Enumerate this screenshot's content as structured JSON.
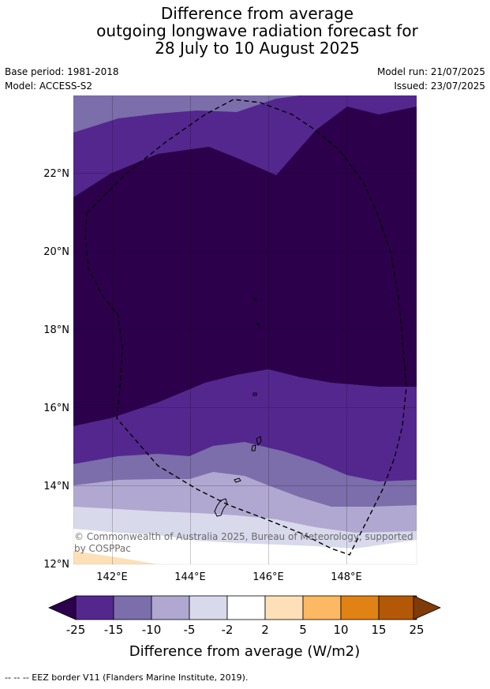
{
  "title": {
    "line1": "Difference from average",
    "line2": "outgoing longwave radiation forecast for",
    "line3": "28 July to 10 August 2025"
  },
  "meta": {
    "base_period": "Base period: 1981-2018",
    "model": "Model: ACCESS-S2",
    "model_run": "Model run: 21/07/2025",
    "issued": "Issued: 23/07/2025"
  },
  "map": {
    "x_ticks": [
      "142°E",
      "144°E",
      "146°E",
      "148°E"
    ],
    "y_ticks": [
      "22°N",
      "20°N",
      "18°N",
      "16°N",
      "14°N",
      "12°N"
    ],
    "copyright": "© Commonwealth of Australia 2025, Bureau of Meteorology, supported",
    "copyright2": "by COSPPac"
  },
  "colorbar": {
    "ticks": [
      "-25",
      "-15",
      "-10",
      "-5",
      "-2",
      "2",
      "5",
      "10",
      "15",
      "25"
    ],
    "colors": [
      "#54278f",
      "#7b6eaa",
      "#b0a8d0",
      "#d9d9ec",
      "#ffffff",
      "#fde0b7",
      "#fdb863",
      "#e08214",
      "#b35806"
    ],
    "low_color": "#2d004b",
    "high_color": "#7f3b08",
    "label": "Difference from average (W/m2)"
  },
  "footnote": "--  --  -- EEZ border V11 (Flanders Marine Institute, 2019)."
}
